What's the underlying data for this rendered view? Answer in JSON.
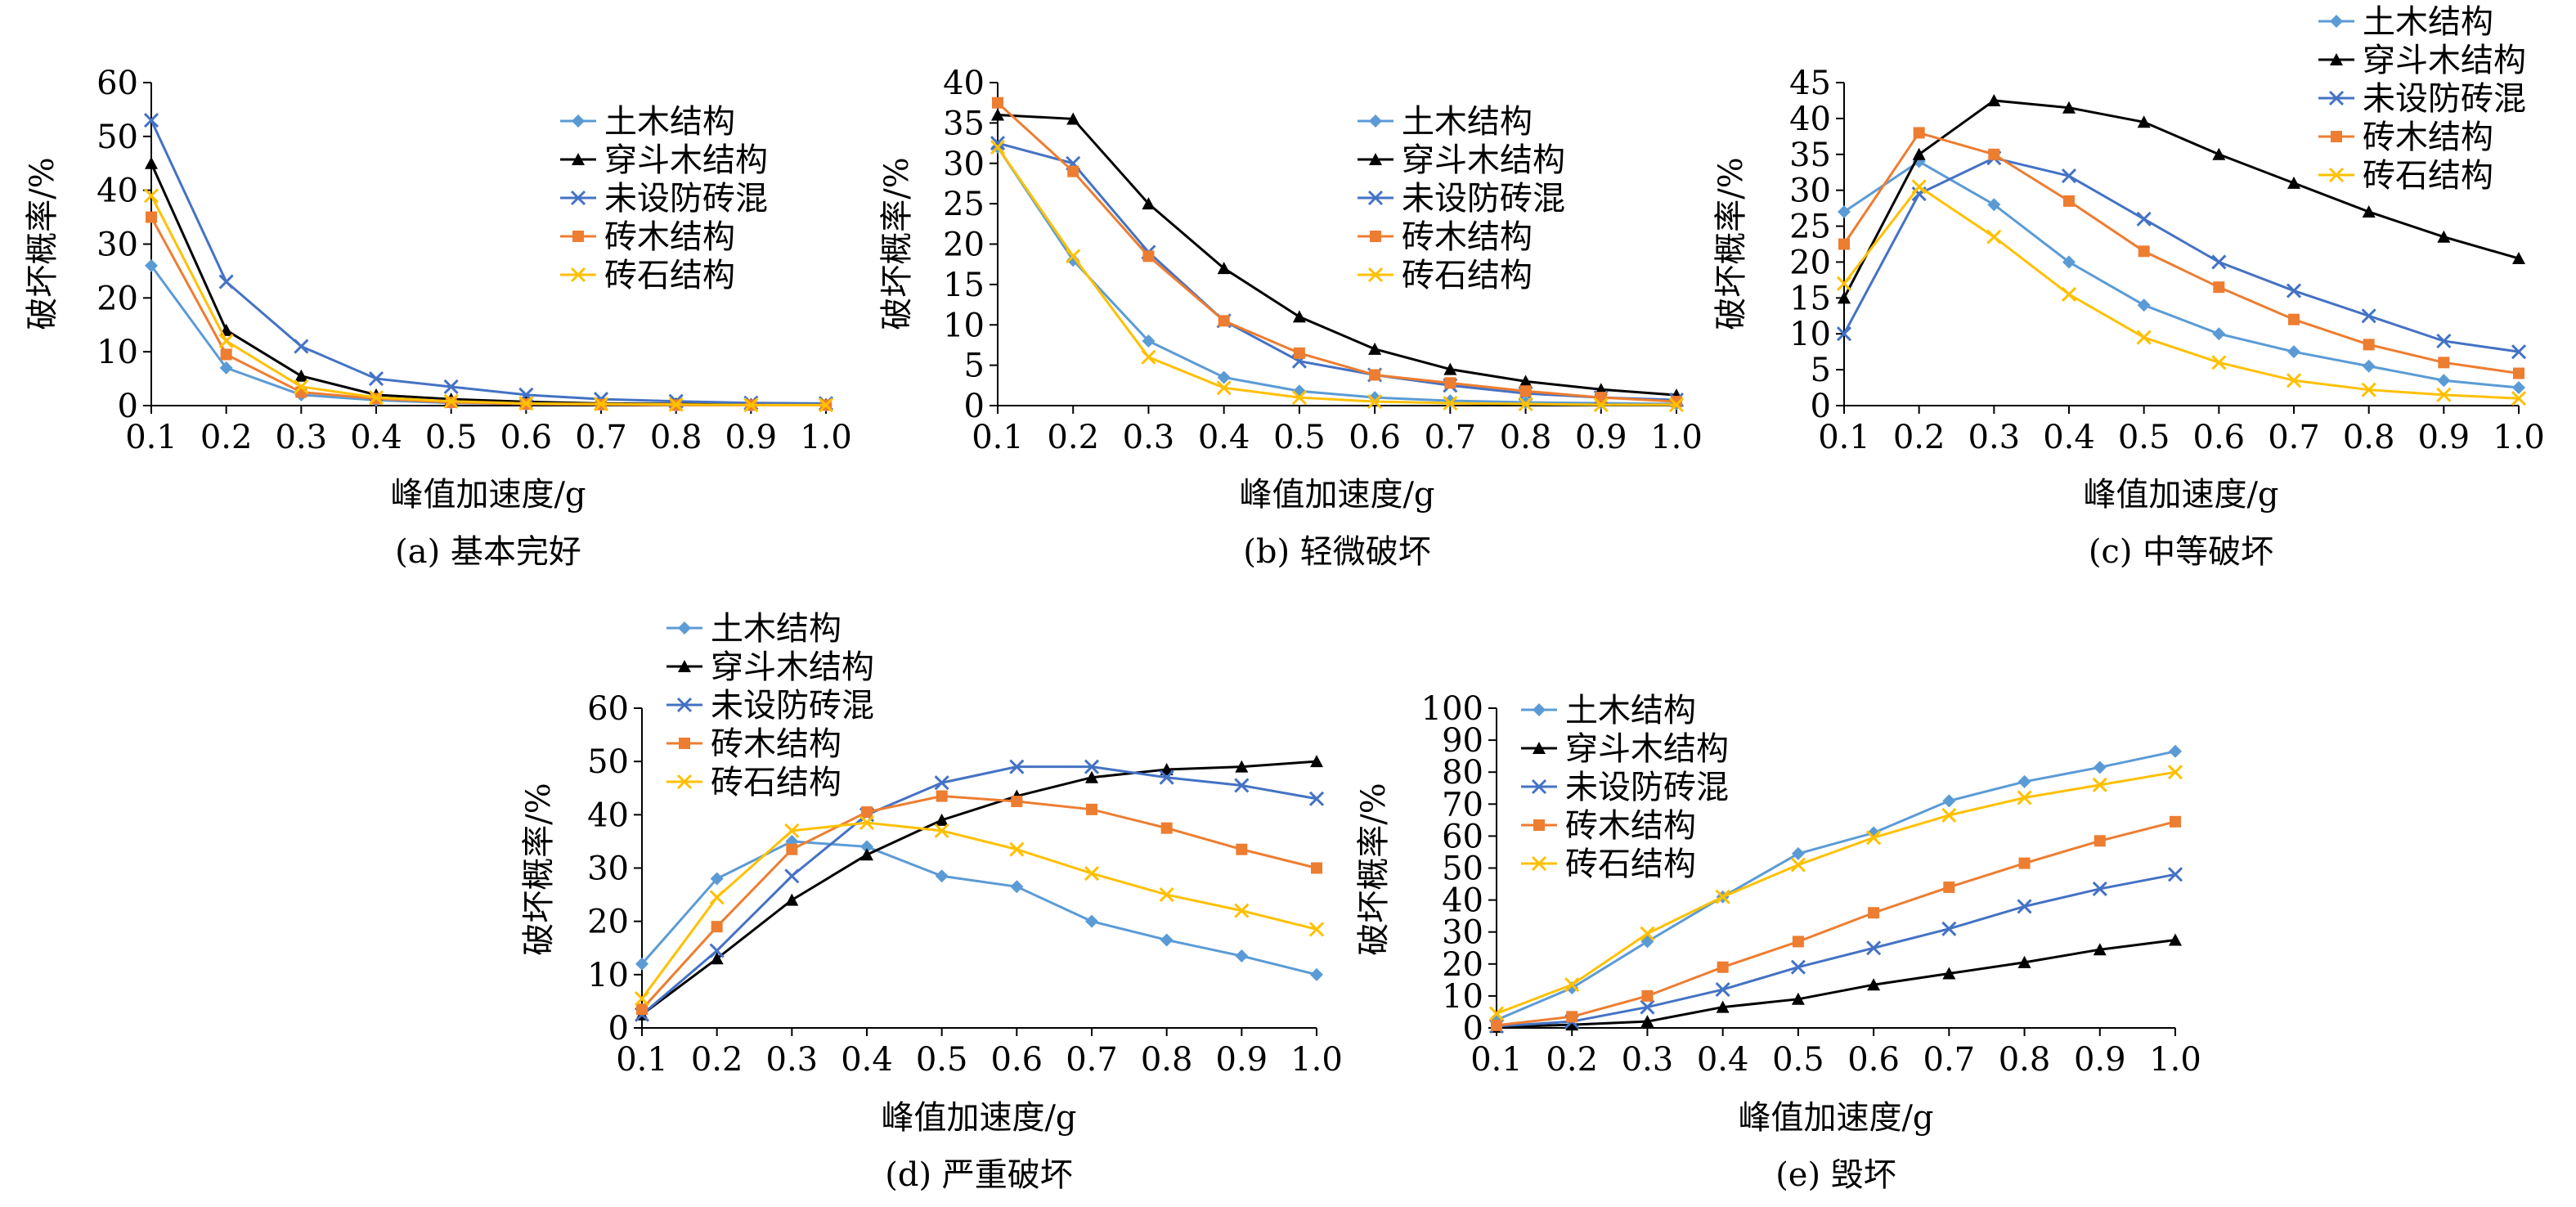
{
  "colors": {
    "土木结构": "#5b9bd5",
    "穿斗木结构": "#000000",
    "未设防砖混": "#4472c4",
    "砖木结构": "#ed7d31",
    "砖石结构": "#ffc000"
  },
  "markers": {
    "土木结构": "diamond",
    "穿斗木结构": "triangle",
    "未设防砖混": "x",
    "砖木结构": "square",
    "砖石结构": "x"
  },
  "chart_data": [
    {
      "type": "line",
      "caption": "(a) 基本完好",
      "xlabel": "峰值加速度/g",
      "ylabel": "破坏概率/%",
      "x": [
        0.1,
        0.2,
        0.3,
        0.4,
        0.5,
        0.6,
        0.7,
        0.8,
        0.9,
        1.0
      ],
      "xticks": [
        "0.1",
        "0.2",
        "0.3",
        "0.4",
        "0.5",
        "0.6",
        "0.7",
        "0.8",
        "0.9",
        "1.0"
      ],
      "ylim": [
        0,
        60
      ],
      "yticks": [
        "0",
        "10",
        "20",
        "30",
        "40",
        "50",
        "60"
      ],
      "legend_position": "top-right",
      "series": [
        {
          "name": "土木结构",
          "values": [
            26,
            7,
            2,
            1,
            0.5,
            0.3,
            0.2,
            0.1,
            0.1,
            0.1
          ]
        },
        {
          "name": "穿斗木结构",
          "values": [
            45,
            14,
            5.5,
            2,
            1.2,
            0.7,
            0.4,
            0.3,
            0.2,
            0.2
          ]
        },
        {
          "name": "未设防砖混",
          "values": [
            53,
            23,
            11,
            5,
            3.5,
            2,
            1.2,
            0.8,
            0.5,
            0.4
          ]
        },
        {
          "name": "砖木结构",
          "values": [
            35,
            9.5,
            2.5,
            1.3,
            0.6,
            0.3,
            0.2,
            0.1,
            0.1,
            0.1
          ]
        },
        {
          "name": "砖石结构",
          "values": [
            39,
            12,
            3.5,
            1.5,
            0.8,
            0.4,
            0.3,
            0.2,
            0.1,
            0.1
          ]
        }
      ]
    },
    {
      "type": "line",
      "caption": "(b) 轻微破坏",
      "xlabel": "峰值加速度/g",
      "ylabel": "破坏概率/%",
      "x": [
        0.1,
        0.2,
        0.3,
        0.4,
        0.5,
        0.6,
        0.7,
        0.8,
        0.9,
        1.0
      ],
      "xticks": [
        "0.1",
        "0.2",
        "0.3",
        "0.4",
        "0.5",
        "0.6",
        "0.7",
        "0.8",
        "0.9",
        "1.0"
      ],
      "ylim": [
        0,
        40
      ],
      "yticks": [
        "0",
        "5",
        "10",
        "15",
        "20",
        "25",
        "30",
        "35",
        "40"
      ],
      "legend_position": "top-right",
      "series": [
        {
          "name": "土木结构",
          "values": [
            32,
            18,
            8,
            3.5,
            1.8,
            1,
            0.6,
            0.4,
            0.3,
            0.2
          ]
        },
        {
          "name": "穿斗木结构",
          "values": [
            36,
            35.5,
            25,
            17,
            11,
            7,
            4.5,
            3,
            2,
            1.3
          ]
        },
        {
          "name": "未设防砖混",
          "values": [
            32.5,
            30,
            19,
            10.5,
            5.5,
            3.8,
            2.5,
            1.5,
            1,
            0.7
          ]
        },
        {
          "name": "砖木结构",
          "values": [
            37.5,
            29,
            18.5,
            10.5,
            6.5,
            3.8,
            2.8,
            1.8,
            1,
            0.5
          ]
        },
        {
          "name": "砖石结构",
          "values": [
            32,
            18.5,
            6,
            2.2,
            1,
            0.5,
            0.3,
            0.2,
            0.1,
            0.1
          ]
        }
      ]
    },
    {
      "type": "line",
      "caption": "(c) 中等破坏",
      "xlabel": "峰值加速度/g",
      "ylabel": "破坏概率/%",
      "x": [
        0.1,
        0.2,
        0.3,
        0.4,
        0.5,
        0.6,
        0.7,
        0.8,
        0.9,
        1.0
      ],
      "xticks": [
        "0.1",
        "0.2",
        "0.3",
        "0.4",
        "0.5",
        "0.6",
        "0.7",
        "0.8",
        "0.9",
        "1.0"
      ],
      "ylim": [
        0,
        45
      ],
      "yticks": [
        "0",
        "5",
        "10",
        "15",
        "20",
        "25",
        "30",
        "35",
        "40",
        "45"
      ],
      "legend_position": "top-right",
      "series": [
        {
          "name": "土木结构",
          "values": [
            27,
            34,
            28,
            20,
            14,
            10,
            7.5,
            5.5,
            3.5,
            2.5
          ]
        },
        {
          "name": "穿斗木结构",
          "values": [
            15,
            35,
            42.5,
            41.5,
            39.5,
            35,
            31,
            27,
            23.5,
            20.5
          ]
        },
        {
          "name": "未设防砖混",
          "values": [
            10,
            29.5,
            34.5,
            32,
            26,
            20,
            16,
            12.5,
            9,
            7.5
          ]
        },
        {
          "name": "砖木结构",
          "values": [
            22.5,
            38,
            35,
            28.5,
            21.5,
            16.5,
            12,
            8.5,
            6,
            4.5
          ]
        },
        {
          "name": "砖石结构",
          "values": [
            17,
            30.5,
            23.5,
            15.5,
            9.5,
            6,
            3.5,
            2.2,
            1.5,
            1
          ]
        }
      ]
    },
    {
      "type": "line",
      "caption": "(d) 严重破坏",
      "xlabel": "峰值加速度/g",
      "ylabel": "破坏概率/%",
      "x": [
        0.1,
        0.2,
        0.3,
        0.4,
        0.5,
        0.6,
        0.7,
        0.8,
        0.9,
        1.0
      ],
      "xticks": [
        "0.1",
        "0.2",
        "0.3",
        "0.4",
        "0.5",
        "0.6",
        "0.7",
        "0.8",
        "0.9",
        "1.0"
      ],
      "ylim": [
        0,
        60
      ],
      "yticks": [
        "0",
        "10",
        "20",
        "30",
        "40",
        "50",
        "60"
      ],
      "legend_position": "top-left",
      "series": [
        {
          "name": "土木结构",
          "values": [
            12,
            28,
            35,
            34,
            28.5,
            26.5,
            20,
            16.5,
            13.5,
            10
          ]
        },
        {
          "name": "穿斗木结构",
          "values": [
            2.5,
            13,
            24,
            32.5,
            39,
            43.5,
            47,
            48.5,
            49,
            50
          ]
        },
        {
          "name": "未设防砖混",
          "values": [
            2.5,
            14.5,
            28.5,
            40,
            46,
            49,
            49,
            47,
            45.5,
            43
          ]
        },
        {
          "name": "砖木结构",
          "values": [
            3.5,
            19,
            33.5,
            40.5,
            43.5,
            42.5,
            41,
            37.5,
            33.5,
            30
          ]
        },
        {
          "name": "砖石结构",
          "values": [
            5.5,
            24.5,
            37,
            38.5,
            37,
            33.5,
            29,
            25,
            22,
            18.5
          ]
        }
      ]
    },
    {
      "type": "line",
      "caption": "(e) 毁坏",
      "xlabel": "峰值加速度/g",
      "ylabel": "破坏概率/%",
      "x": [
        0.1,
        0.2,
        0.3,
        0.4,
        0.5,
        0.6,
        0.7,
        0.8,
        0.9,
        1.0
      ],
      "xticks": [
        "0.1",
        "0.2",
        "0.3",
        "0.4",
        "0.5",
        "0.6",
        "0.7",
        "0.8",
        "0.9",
        "1.0"
      ],
      "ylim": [
        0,
        100
      ],
      "yticks": [
        "0",
        "10",
        "20",
        "30",
        "40",
        "50",
        "60",
        "70",
        "80",
        "90",
        "100"
      ],
      "legend_position": "top-left",
      "series": [
        {
          "name": "土木结构",
          "values": [
            2.5,
            12.5,
            27,
            41,
            54.5,
            61,
            71,
            77,
            81.5,
            86.5
          ]
        },
        {
          "name": "穿斗木结构",
          "values": [
            0.3,
            1,
            2,
            6.5,
            9,
            13.5,
            17,
            20.5,
            24.5,
            27.5
          ]
        },
        {
          "name": "未设防砖混",
          "values": [
            0.5,
            2,
            6.5,
            12,
            19,
            25,
            31,
            38,
            43.5,
            48
          ]
        },
        {
          "name": "砖木结构",
          "values": [
            0.8,
            3.5,
            10,
            19,
            27,
            36,
            44,
            51.5,
            58.5,
            64.5
          ]
        },
        {
          "name": "砖石结构",
          "values": [
            4.5,
            13.5,
            29.5,
            41,
            51,
            59.5,
            66.5,
            72,
            76,
            80
          ]
        }
      ]
    }
  ]
}
